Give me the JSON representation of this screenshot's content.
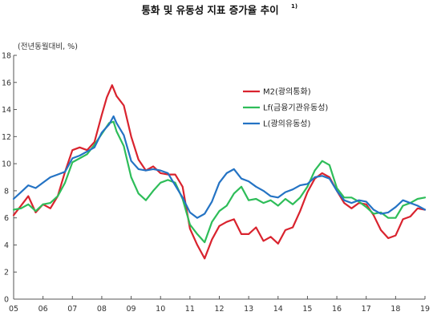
{
  "title": "통화 및 유동성 지표 증가율 추이",
  "title_note": "1)",
  "unit_label": "(전년동월대비, %)",
  "chart_data": {
    "type": "line",
    "title": "통화 및 유동성 지표 증가율 추이",
    "ylabel": "(전년동월대비, %)",
    "xlabel": "",
    "ylim": [
      0,
      18
    ],
    "yticks": [
      0,
      2,
      4,
      6,
      8,
      10,
      12,
      14,
      16,
      18
    ],
    "xlim": [
      2005,
      2019
    ],
    "xticks": [
      {
        "value": 2005,
        "label": "05"
      },
      {
        "value": 2006,
        "label": "06"
      },
      {
        "value": 2007,
        "label": "07"
      },
      {
        "value": 2008,
        "label": "08"
      },
      {
        "value": 2009,
        "label": "09"
      },
      {
        "value": 2010,
        "label": "10"
      },
      {
        "value": 2011,
        "label": "11"
      },
      {
        "value": 2012,
        "label": "12"
      },
      {
        "value": 2013,
        "label": "13"
      },
      {
        "value": 2014,
        "label": "14"
      },
      {
        "value": 2015,
        "label": "15"
      },
      {
        "value": 2016,
        "label": "16"
      },
      {
        "value": 2017,
        "label": "17"
      },
      {
        "value": 2018,
        "label": "18"
      },
      {
        "value": 2019,
        "label": "19"
      }
    ],
    "grid": false,
    "legend_position": "top-right",
    "series": [
      {
        "name": "M2(광의통화)",
        "color": "#d9232e",
        "x": [
          2005.0,
          2005.25,
          2005.5,
          2005.75,
          2006.0,
          2006.25,
          2006.5,
          2006.75,
          2007.0,
          2007.25,
          2007.5,
          2007.75,
          2008.0,
          2008.17,
          2008.35,
          2008.5,
          2008.75,
          2009.0,
          2009.25,
          2009.5,
          2009.75,
          2010.0,
          2010.25,
          2010.5,
          2010.75,
          2011.0,
          2011.25,
          2011.5,
          2011.75,
          2012.0,
          2012.25,
          2012.5,
          2012.75,
          2013.0,
          2013.25,
          2013.5,
          2013.75,
          2014.0,
          2014.25,
          2014.5,
          2014.75,
          2015.0,
          2015.25,
          2015.5,
          2015.75,
          2016.0,
          2016.25,
          2016.5,
          2016.75,
          2017.0,
          2017.25,
          2017.5,
          2017.75,
          2018.0,
          2018.25,
          2018.5,
          2018.75,
          2019.0
        ],
        "y": [
          6.2,
          6.9,
          7.6,
          6.4,
          7.0,
          6.7,
          7.6,
          9.4,
          11.0,
          11.2,
          11.0,
          11.6,
          13.6,
          14.9,
          15.8,
          15.0,
          14.3,
          12.0,
          10.3,
          9.5,
          9.8,
          9.3,
          9.2,
          9.2,
          8.3,
          5.2,
          4.0,
          3.0,
          4.4,
          5.4,
          5.7,
          5.9,
          4.8,
          4.8,
          5.3,
          4.3,
          4.6,
          4.1,
          5.1,
          5.3,
          6.5,
          7.9,
          8.9,
          9.3,
          9.0,
          8.0,
          7.1,
          6.7,
          7.1,
          7.0,
          6.2,
          5.1,
          4.5,
          4.7,
          5.9,
          6.1,
          6.7,
          6.6
        ]
      },
      {
        "name": "Lf(금융기관유동성)",
        "color": "#2ebd59",
        "x": [
          2005.0,
          2005.25,
          2005.5,
          2005.75,
          2006.0,
          2006.25,
          2006.5,
          2006.75,
          2007.0,
          2007.25,
          2007.5,
          2007.75,
          2008.0,
          2008.25,
          2008.4,
          2008.5,
          2008.75,
          2009.0,
          2009.25,
          2009.5,
          2009.75,
          2010.0,
          2010.25,
          2010.5,
          2010.75,
          2011.0,
          2011.25,
          2011.5,
          2011.75,
          2012.0,
          2012.25,
          2012.5,
          2012.75,
          2013.0,
          2013.25,
          2013.5,
          2013.75,
          2014.0,
          2014.25,
          2014.5,
          2014.75,
          2015.0,
          2015.25,
          2015.5,
          2015.75,
          2016.0,
          2016.25,
          2016.5,
          2016.75,
          2017.0,
          2017.25,
          2017.5,
          2017.75,
          2018.0,
          2018.25,
          2018.5,
          2018.75,
          2019.0
        ],
        "y": [
          6.6,
          6.7,
          7.0,
          6.5,
          7.0,
          7.1,
          7.6,
          8.6,
          10.1,
          10.4,
          10.7,
          11.4,
          12.2,
          13.0,
          13.1,
          12.4,
          11.3,
          9.0,
          7.8,
          7.3,
          8.0,
          8.6,
          8.8,
          8.6,
          7.4,
          5.5,
          4.8,
          4.2,
          5.7,
          6.5,
          6.9,
          7.8,
          8.3,
          7.3,
          7.4,
          7.1,
          7.3,
          6.9,
          7.4,
          7.0,
          7.5,
          8.3,
          9.5,
          10.2,
          9.9,
          8.2,
          7.5,
          7.5,
          7.2,
          6.8,
          6.3,
          6.4,
          6.0,
          6.0,
          6.9,
          7.1,
          7.4,
          7.5
        ]
      },
      {
        "name": "L(광의유동성)",
        "color": "#2473c4",
        "x": [
          2005.0,
          2005.25,
          2005.5,
          2005.75,
          2006.0,
          2006.25,
          2006.5,
          2006.75,
          2007.0,
          2007.25,
          2007.5,
          2007.75,
          2008.0,
          2008.25,
          2008.4,
          2008.5,
          2008.75,
          2009.0,
          2009.25,
          2009.5,
          2009.75,
          2010.0,
          2010.25,
          2010.5,
          2010.75,
          2011.0,
          2011.25,
          2011.5,
          2011.75,
          2012.0,
          2012.25,
          2012.5,
          2012.75,
          2013.0,
          2013.25,
          2013.5,
          2013.75,
          2014.0,
          2014.25,
          2014.5,
          2014.75,
          2015.0,
          2015.25,
          2015.5,
          2015.75,
          2016.0,
          2016.25,
          2016.5,
          2016.75,
          2017.0,
          2017.25,
          2017.5,
          2017.75,
          2018.0,
          2018.25,
          2018.5,
          2018.75,
          2019.0
        ],
        "y": [
          7.4,
          7.9,
          8.4,
          8.2,
          8.6,
          9.0,
          9.2,
          9.4,
          10.4,
          10.6,
          10.9,
          11.2,
          12.3,
          12.9,
          13.5,
          13.0,
          12.1,
          10.2,
          9.6,
          9.5,
          9.6,
          9.5,
          9.3,
          8.4,
          7.5,
          6.4,
          6.0,
          6.3,
          7.2,
          8.6,
          9.3,
          9.6,
          8.9,
          8.7,
          8.3,
          8.0,
          7.6,
          7.5,
          7.9,
          8.1,
          8.4,
          8.5,
          9.0,
          9.1,
          8.9,
          8.0,
          7.3,
          7.1,
          7.3,
          7.2,
          6.6,
          6.3,
          6.4,
          6.8,
          7.3,
          7.1,
          6.9,
          6.6
        ]
      }
    ]
  }
}
